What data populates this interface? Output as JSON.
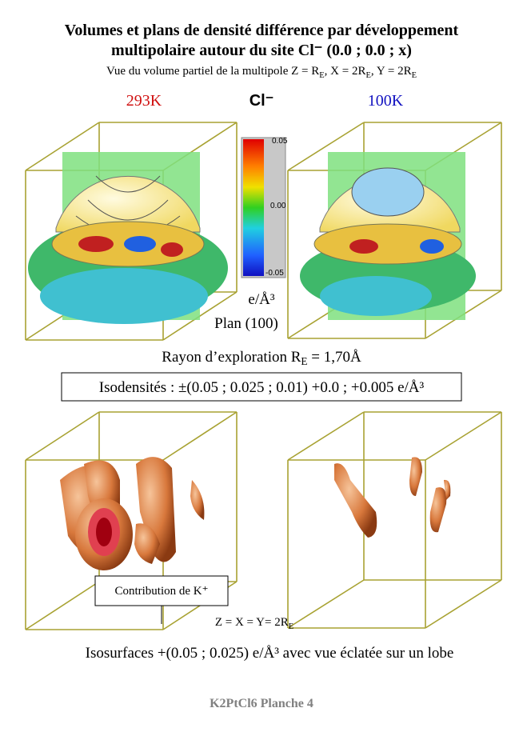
{
  "header": {
    "title": [
      "Volumes et plans de densité différence par développement",
      "multipolaire autour du site  Cl⁻ (0.0 ; 0.0 ; x)"
    ],
    "subtitle": [
      "Vue du volume partiel de la multipole Z = R",
      "E",
      ",  X = 2R",
      "E",
      ",  Y = 2R",
      "E"
    ]
  },
  "labels": {
    "left": "293K",
    "center": "Cl⁻",
    "right": "100K"
  },
  "colorbar": {
    "ticks": [
      "0.05",
      "0.00",
      "-0.05"
    ],
    "unit": "e/Å³",
    "plane": "Plan (100)"
  },
  "radius": [
    "Rayon d’exploration R",
    "E",
    " = 1,70Å"
  ],
  "isodensities": "Isodensités : ±(0.05 ; 0.025 ; 0.01) +0.0 ; +0.005 e/Å³",
  "contribution": "Contribution de K⁺",
  "zxy": [
    "Z = X = Y= 2R",
    "E"
  ],
  "isosurfaces": "Isosurfaces +(0.05 ; 0.025) e/Å³ avec vue éclatée sur un lobe",
  "footer": "K2PtCl6 Planche 4"
}
